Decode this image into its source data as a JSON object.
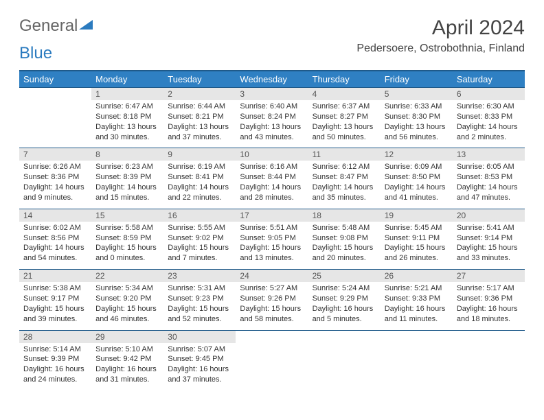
{
  "logo": {
    "part1": "General",
    "part2": "Blue"
  },
  "title": "April 2024",
  "location": "Pedersoere, Ostrobothnia, Finland",
  "colors": {
    "header_bg": "#2f80c3",
    "header_border": "#1f5a8a",
    "daynum_bg": "#e6e6e6",
    "text": "#333333",
    "logo_blue": "#2b7bbf"
  },
  "weekdays": [
    "Sunday",
    "Monday",
    "Tuesday",
    "Wednesday",
    "Thursday",
    "Friday",
    "Saturday"
  ],
  "weeks": [
    [
      null,
      {
        "n": "1",
        "sr": "Sunrise: 6:47 AM",
        "ss": "Sunset: 8:18 PM",
        "dl": "Daylight: 13 hours and 30 minutes."
      },
      {
        "n": "2",
        "sr": "Sunrise: 6:44 AM",
        "ss": "Sunset: 8:21 PM",
        "dl": "Daylight: 13 hours and 37 minutes."
      },
      {
        "n": "3",
        "sr": "Sunrise: 6:40 AM",
        "ss": "Sunset: 8:24 PM",
        "dl": "Daylight: 13 hours and 43 minutes."
      },
      {
        "n": "4",
        "sr": "Sunrise: 6:37 AM",
        "ss": "Sunset: 8:27 PM",
        "dl": "Daylight: 13 hours and 50 minutes."
      },
      {
        "n": "5",
        "sr": "Sunrise: 6:33 AM",
        "ss": "Sunset: 8:30 PM",
        "dl": "Daylight: 13 hours and 56 minutes."
      },
      {
        "n": "6",
        "sr": "Sunrise: 6:30 AM",
        "ss": "Sunset: 8:33 PM",
        "dl": "Daylight: 14 hours and 2 minutes."
      }
    ],
    [
      {
        "n": "7",
        "sr": "Sunrise: 6:26 AM",
        "ss": "Sunset: 8:36 PM",
        "dl": "Daylight: 14 hours and 9 minutes."
      },
      {
        "n": "8",
        "sr": "Sunrise: 6:23 AM",
        "ss": "Sunset: 8:39 PM",
        "dl": "Daylight: 14 hours and 15 minutes."
      },
      {
        "n": "9",
        "sr": "Sunrise: 6:19 AM",
        "ss": "Sunset: 8:41 PM",
        "dl": "Daylight: 14 hours and 22 minutes."
      },
      {
        "n": "10",
        "sr": "Sunrise: 6:16 AM",
        "ss": "Sunset: 8:44 PM",
        "dl": "Daylight: 14 hours and 28 minutes."
      },
      {
        "n": "11",
        "sr": "Sunrise: 6:12 AM",
        "ss": "Sunset: 8:47 PM",
        "dl": "Daylight: 14 hours and 35 minutes."
      },
      {
        "n": "12",
        "sr": "Sunrise: 6:09 AM",
        "ss": "Sunset: 8:50 PM",
        "dl": "Daylight: 14 hours and 41 minutes."
      },
      {
        "n": "13",
        "sr": "Sunrise: 6:05 AM",
        "ss": "Sunset: 8:53 PM",
        "dl": "Daylight: 14 hours and 47 minutes."
      }
    ],
    [
      {
        "n": "14",
        "sr": "Sunrise: 6:02 AM",
        "ss": "Sunset: 8:56 PM",
        "dl": "Daylight: 14 hours and 54 minutes."
      },
      {
        "n": "15",
        "sr": "Sunrise: 5:58 AM",
        "ss": "Sunset: 8:59 PM",
        "dl": "Daylight: 15 hours and 0 minutes."
      },
      {
        "n": "16",
        "sr": "Sunrise: 5:55 AM",
        "ss": "Sunset: 9:02 PM",
        "dl": "Daylight: 15 hours and 7 minutes."
      },
      {
        "n": "17",
        "sr": "Sunrise: 5:51 AM",
        "ss": "Sunset: 9:05 PM",
        "dl": "Daylight: 15 hours and 13 minutes."
      },
      {
        "n": "18",
        "sr": "Sunrise: 5:48 AM",
        "ss": "Sunset: 9:08 PM",
        "dl": "Daylight: 15 hours and 20 minutes."
      },
      {
        "n": "19",
        "sr": "Sunrise: 5:45 AM",
        "ss": "Sunset: 9:11 PM",
        "dl": "Daylight: 15 hours and 26 minutes."
      },
      {
        "n": "20",
        "sr": "Sunrise: 5:41 AM",
        "ss": "Sunset: 9:14 PM",
        "dl": "Daylight: 15 hours and 33 minutes."
      }
    ],
    [
      {
        "n": "21",
        "sr": "Sunrise: 5:38 AM",
        "ss": "Sunset: 9:17 PM",
        "dl": "Daylight: 15 hours and 39 minutes."
      },
      {
        "n": "22",
        "sr": "Sunrise: 5:34 AM",
        "ss": "Sunset: 9:20 PM",
        "dl": "Daylight: 15 hours and 46 minutes."
      },
      {
        "n": "23",
        "sr": "Sunrise: 5:31 AM",
        "ss": "Sunset: 9:23 PM",
        "dl": "Daylight: 15 hours and 52 minutes."
      },
      {
        "n": "24",
        "sr": "Sunrise: 5:27 AM",
        "ss": "Sunset: 9:26 PM",
        "dl": "Daylight: 15 hours and 58 minutes."
      },
      {
        "n": "25",
        "sr": "Sunrise: 5:24 AM",
        "ss": "Sunset: 9:29 PM",
        "dl": "Daylight: 16 hours and 5 minutes."
      },
      {
        "n": "26",
        "sr": "Sunrise: 5:21 AM",
        "ss": "Sunset: 9:33 PM",
        "dl": "Daylight: 16 hours and 11 minutes."
      },
      {
        "n": "27",
        "sr": "Sunrise: 5:17 AM",
        "ss": "Sunset: 9:36 PM",
        "dl": "Daylight: 16 hours and 18 minutes."
      }
    ],
    [
      {
        "n": "28",
        "sr": "Sunrise: 5:14 AM",
        "ss": "Sunset: 9:39 PM",
        "dl": "Daylight: 16 hours and 24 minutes."
      },
      {
        "n": "29",
        "sr": "Sunrise: 5:10 AM",
        "ss": "Sunset: 9:42 PM",
        "dl": "Daylight: 16 hours and 31 minutes."
      },
      {
        "n": "30",
        "sr": "Sunrise: 5:07 AM",
        "ss": "Sunset: 9:45 PM",
        "dl": "Daylight: 16 hours and 37 minutes."
      },
      null,
      null,
      null,
      null
    ]
  ]
}
